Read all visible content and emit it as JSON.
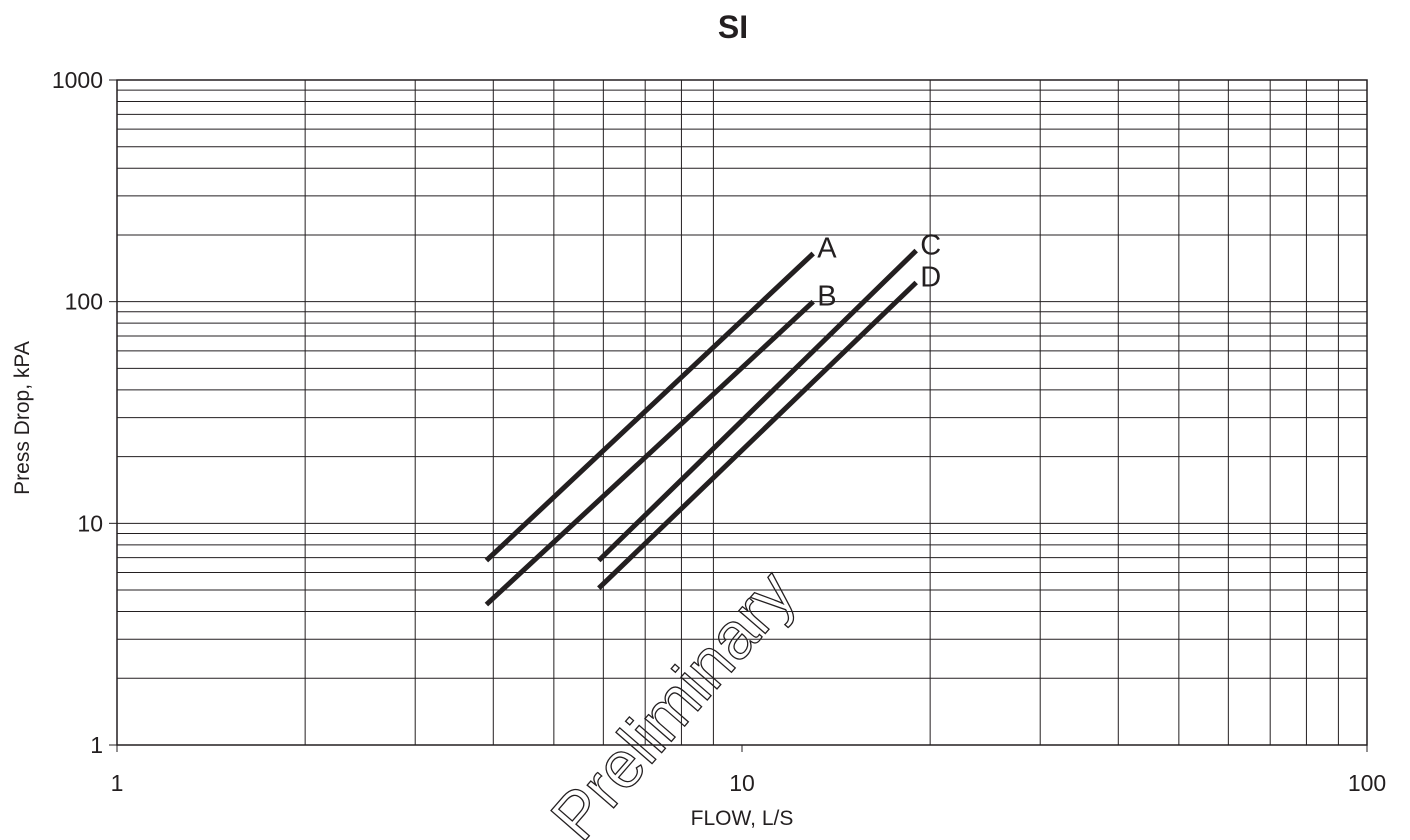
{
  "chart_data": {
    "type": "line",
    "title": "SI",
    "xlabel": "FLOW, L/S",
    "ylabel": "Press Drop, kPA",
    "xscale": "log",
    "yscale": "log",
    "xlim": [
      1,
      100
    ],
    "ylim": [
      1,
      1000
    ],
    "x_ticks": [
      "1",
      "10",
      "100"
    ],
    "y_ticks": [
      "1",
      "10",
      "100",
      "1000"
    ],
    "grid": true,
    "series": [
      {
        "name": "A",
        "x": [
          3.9,
          13.0
        ],
        "y": [
          6.8,
          165
        ]
      },
      {
        "name": "B",
        "x": [
          3.9,
          13.0
        ],
        "y": [
          4.3,
          100
        ]
      },
      {
        "name": "C",
        "x": [
          5.9,
          19.0
        ],
        "y": [
          6.8,
          170
        ]
      },
      {
        "name": "D",
        "x": [
          5.9,
          19.0
        ],
        "y": [
          5.1,
          122
        ]
      }
    ],
    "watermark": "Preliminary"
  }
}
